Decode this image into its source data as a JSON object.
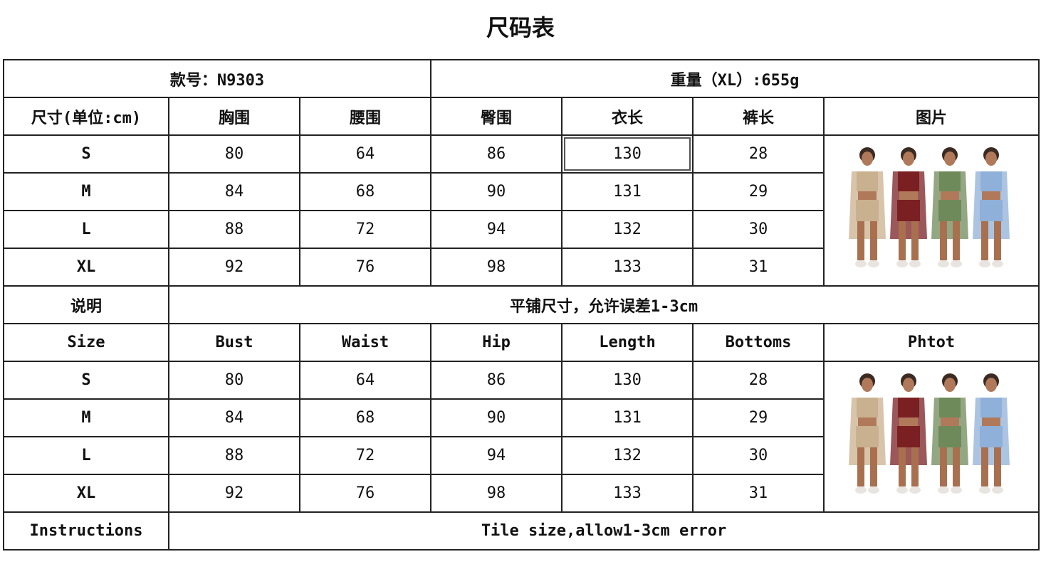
{
  "title": "尺码表",
  "style_no": "款号：N9303",
  "weight": "重量（XL）:655g",
  "cn_headers": [
    "尺寸(单位:cm)",
    "胸围",
    "腰围",
    "臀围",
    "衣长",
    "裤长",
    "图片"
  ],
  "en_headers": [
    "Size",
    "Bust",
    "Waist",
    "Hip",
    "Length",
    "Bottoms",
    "Phtot"
  ],
  "rows": [
    [
      "S",
      "80",
      "64",
      "86",
      "130",
      "28"
    ],
    [
      "M",
      "84",
      "68",
      "90",
      "131",
      "29"
    ],
    [
      "L",
      "88",
      "72",
      "94",
      "132",
      "30"
    ],
    [
      "XL",
      "92",
      "76",
      "98",
      "133",
      "31"
    ]
  ],
  "cn_note_label": "说明",
  "cn_note": "平铺尺寸，允许误差1-3cm",
  "en_note_label": "Instructions",
  "en_note": "Tile size,allow1-3cm error",
  "outfit_colors": [
    "#c9b08f",
    "#7a1f22",
    "#6f8a5a",
    "#8fb0d8"
  ]
}
